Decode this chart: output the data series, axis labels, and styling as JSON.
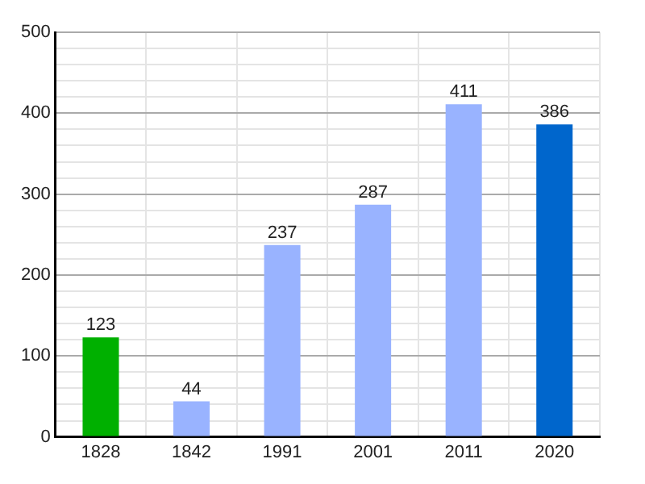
{
  "chart_data": {
    "type": "bar",
    "categories": [
      "1828",
      "1842",
      "1991",
      "2001",
      "2011",
      "2020"
    ],
    "values": [
      123,
      44,
      237,
      287,
      411,
      386
    ],
    "colors": [
      "#00b000",
      "#99b3ff",
      "#99b3ff",
      "#99b3ff",
      "#99b3ff",
      "#0066cc"
    ],
    "ylim": [
      0,
      500
    ],
    "yticks": [
      0,
      {
        "value": 20,
        "label": null
      },
      {
        "value": 40,
        "label": null
      },
      {
        "value": 60,
        "label": null
      },
      {
        "value": 80,
        "label": null
      },
      100,
      {
        "value": 120,
        "label": null
      },
      {
        "value": 140,
        "label": null
      },
      {
        "value": 160,
        "label": null
      },
      {
        "value": 180,
        "label": null
      },
      200,
      {
        "value": 220,
        "label": null
      },
      {
        "value": 240,
        "label": null
      },
      {
        "value": 260,
        "label": null
      },
      {
        "value": 280,
        "label": null
      },
      300,
      {
        "value": 320,
        "label": null
      },
      {
        "value": 340,
        "label": null
      },
      {
        "value": 360,
        "label": null
      },
      {
        "value": 380,
        "label": null
      },
      400,
      {
        "value": 420,
        "label": null
      },
      {
        "value": 440,
        "label": null
      },
      {
        "value": 460,
        "label": null
      },
      {
        "value": 480,
        "label": null
      },
      500
    ],
    "grid": true,
    "data_labels": true
  }
}
